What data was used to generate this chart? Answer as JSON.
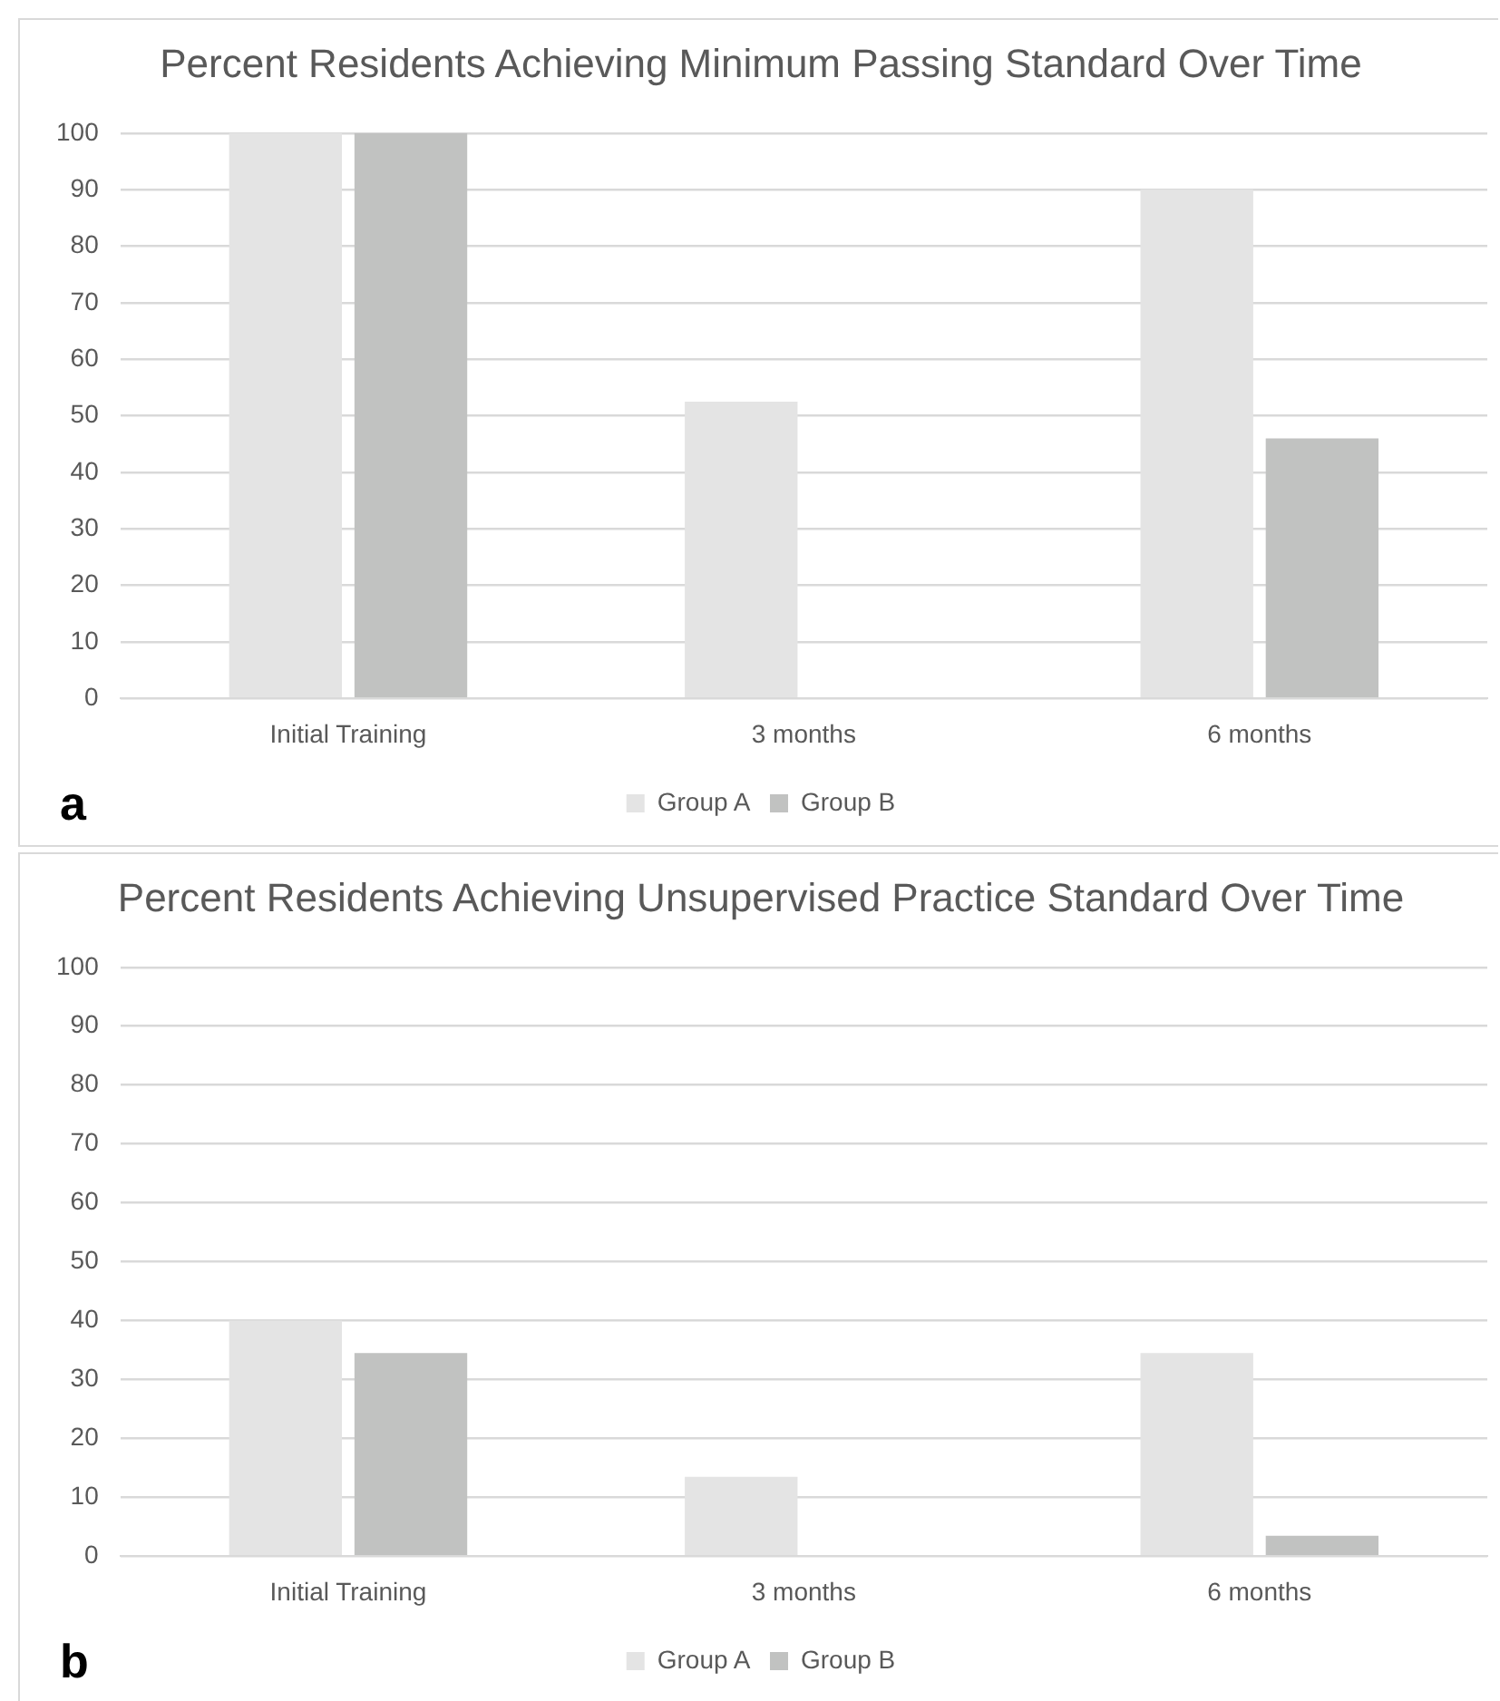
{
  "chart_data": [
    {
      "type": "bar",
      "title": "Percent Residents Achieving Minimum Passing Standard Over Time",
      "categories": [
        "Initial Training",
        "3 months",
        "6 months"
      ],
      "series": [
        {
          "name": "Group A",
          "color": "#e4e4e4",
          "values": [
            100,
            52.5,
            90
          ]
        },
        {
          "name": "Group B",
          "color": "#c1c2c1",
          "values": [
            100,
            0,
            46
          ]
        }
      ],
      "ylim": [
        0,
        100
      ],
      "yticks": [
        0,
        10,
        20,
        30,
        40,
        50,
        60,
        70,
        80,
        90,
        100
      ],
      "grid": "y",
      "legend": "bottom",
      "annotations": [
        "a"
      ]
    },
    {
      "type": "bar",
      "title": "Percent Residents Achieving Unsupervised Practice Standard Over Time",
      "categories": [
        "Initial Training",
        "3 months",
        "6 months"
      ],
      "series": [
        {
          "name": "Group A",
          "color": "#e4e4e4",
          "values": [
            40,
            13.5,
            34.5
          ]
        },
        {
          "name": "Group B",
          "color": "#c1c2c1",
          "values": [
            34.5,
            0,
            3.5
          ]
        }
      ],
      "ylim": [
        0,
        100
      ],
      "yticks": [
        0,
        10,
        20,
        30,
        40,
        50,
        60,
        70,
        80,
        90,
        100
      ],
      "grid": "y",
      "legend": "bottom",
      "annotations": [
        "b"
      ]
    }
  ]
}
